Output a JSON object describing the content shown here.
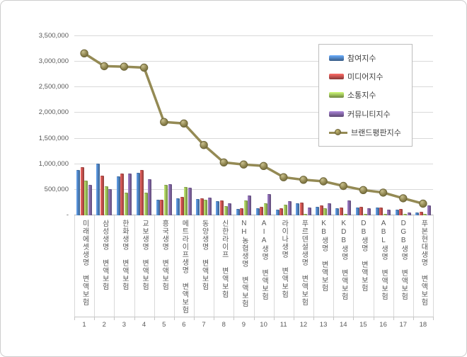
{
  "chart_data": {
    "type": "bar+line",
    "title": "",
    "categories": [
      "미래에셋생명 변액보험",
      "삼성생명 변액보험",
      "한화생명 변액보험",
      "교보생명 변액보험",
      "흥국생명 변액보험",
      "메트라이프생명 변액보험",
      "동양생명 변액보험",
      "신한라이프 변액보험",
      "NH농협생명 변액보험",
      "AIA생명 변액보험",
      "라이나생명 변액보험",
      "푸르덴셜생명 변액보험",
      "KB생명 변액보험",
      "KDB생명 변액보험",
      "DB생명 변액보험",
      "ABL생명 변액보험",
      "DGB생명 변액보험",
      "푸본현대생명 변액보험"
    ],
    "ranks": [
      "1",
      "2",
      "3",
      "4",
      "5",
      "6",
      "7",
      "8",
      "9",
      "10",
      "11",
      "12",
      "13",
      "14",
      "15",
      "16",
      "17",
      "18"
    ],
    "series": [
      {
        "name": "참여지수",
        "key": "participation-index",
        "type": "bar",
        "color": "#4F81BD",
        "values": [
          865000,
          990000,
          750000,
          810000,
          295000,
          320000,
          310000,
          265000,
          110000,
          120000,
          100000,
          215000,
          155000,
          120000,
          135000,
          135000,
          90000,
          35000
        ]
      },
      {
        "name": "미디어지수",
        "key": "media-index",
        "type": "bar",
        "color": "#C0504D",
        "values": [
          920000,
          760000,
          800000,
          870000,
          285000,
          350000,
          325000,
          275000,
          120000,
          155000,
          120000,
          240000,
          180000,
          145000,
          155000,
          145000,
          110000,
          50000
        ]
      },
      {
        "name": "소통지수",
        "key": "communication-index",
        "type": "bar",
        "color": "#9BBB59",
        "values": [
          670000,
          560000,
          435000,
          425000,
          575000,
          540000,
          290000,
          160000,
          275000,
          220000,
          190000,
          20000,
          125000,
          15000,
          15000,
          12000,
          10000,
          8000
        ]
      },
      {
        "name": "커뮤니티지수",
        "key": "community-index",
        "type": "bar",
        "color": "#8064A2",
        "values": [
          580000,
          500000,
          800000,
          690000,
          600000,
          520000,
          335000,
          225000,
          375000,
          400000,
          260000,
          140000,
          220000,
          275000,
          120000,
          95000,
          45000,
          180000
        ]
      },
      {
        "name": "브랜드평판지수",
        "key": "brand-reputation-index",
        "type": "line",
        "color": "#948A54",
        "marker_stroke": "#6e6639",
        "values": [
          3150000,
          2900000,
          2890000,
          2870000,
          1810000,
          1780000,
          1360000,
          1020000,
          980000,
          950000,
          730000,
          680000,
          650000,
          560000,
          480000,
          430000,
          320000,
          215000
        ]
      }
    ],
    "y_axis": {
      "min": 0,
      "max": 3500000,
      "tick_interval": 500000,
      "tick_labels": [
        "-",
        "500,000",
        "1,000,000",
        "1,500,000",
        "2,000,000",
        "2,500,000",
        "3,000,000",
        "3,500,000"
      ]
    },
    "legend": {
      "position": "top-right"
    },
    "grid": true,
    "background": "#ffffff",
    "gridline_color": "#d9d9d9"
  }
}
